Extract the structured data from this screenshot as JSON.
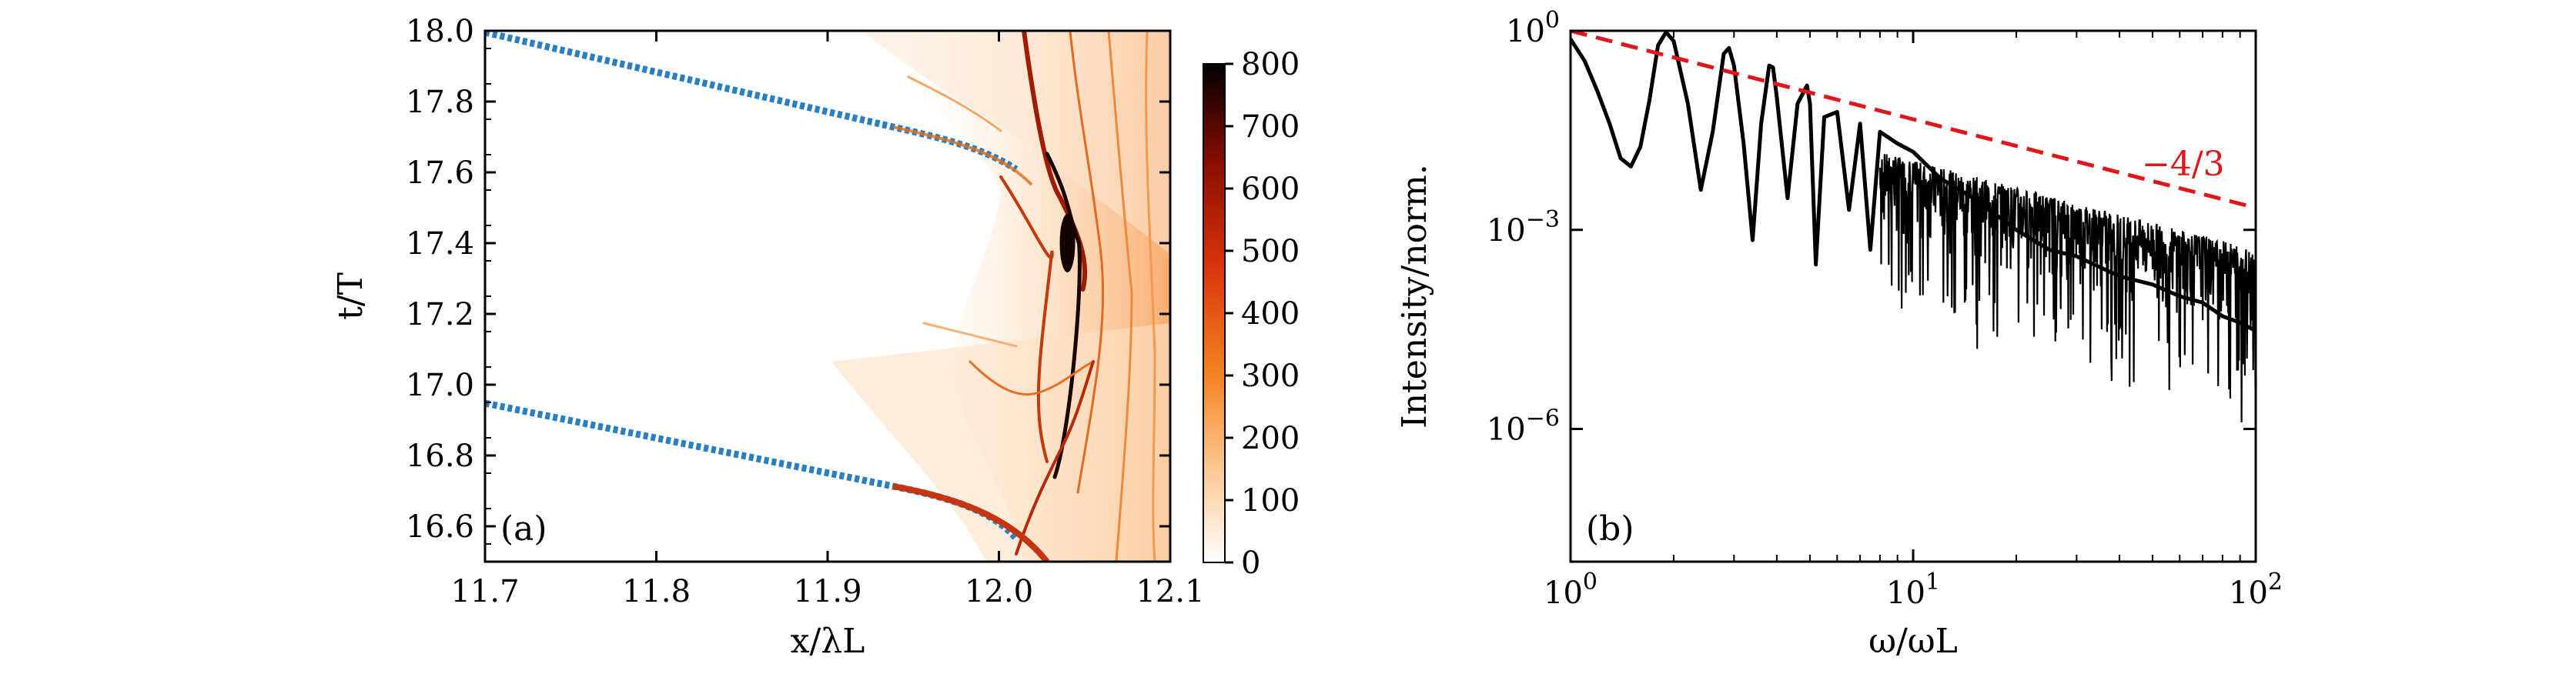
{
  "chart_data": [
    {
      "panel": "(a)",
      "type": "heatmap",
      "xlabel": "x/λL",
      "ylabel": "t/T",
      "xlim": [
        11.7,
        12.1
      ],
      "ylim": [
        16.5,
        18.0
      ],
      "xticks": [
        "11.7",
        "11.8",
        "11.9",
        "12.0",
        "12.1"
      ],
      "yticks": [
        "16.6",
        "16.8",
        "17.0",
        "17.2",
        "17.4",
        "17.6",
        "17.8",
        "18.0"
      ],
      "colorbar": {
        "ticks": [
          "0",
          "100",
          "200",
          "300",
          "400",
          "500",
          "600",
          "700",
          "800"
        ],
        "range": [
          0,
          800
        ],
        "colormap": "gist_heat_r (white → orange → red → black)"
      },
      "features": {
        "incident_pulses": [
          {
            "x": [
              11.7,
              11.93,
              12.02
            ],
            "t": [
              18.0,
              17.76,
              17.69
            ]
          },
          {
            "x": [
              11.7,
              11.93,
              12.02
            ],
            "t": [
              16.95,
              16.7,
              16.62
            ]
          }
        ],
        "surface_peak": {
          "x": 12.04,
          "t": 17.4
        }
      }
    },
    {
      "panel": "(b)",
      "type": "line",
      "xlabel": "ω/ωL",
      "ylabel": "Intensity/norm.",
      "xscale": "log",
      "yscale": "log",
      "xlim": [
        1,
        100
      ],
      "ylim": [
        1e-08,
        1
      ],
      "xticks": [
        "10^0",
        "10^1",
        "10^2"
      ],
      "yticks": [
        "10^-6",
        "10^-3",
        "10^0"
      ],
      "annotation": "−4/3",
      "series": [
        {
          "style": "solid-black",
          "x": [
            1.0,
            1.1,
            1.2,
            1.3,
            1.4,
            1.5,
            1.6,
            1.7,
            1.8,
            1.9,
            2.0,
            2.2,
            2.4,
            2.6,
            2.8,
            2.9,
            3.0,
            3.2,
            3.4,
            3.6,
            3.8,
            3.9,
            4.0,
            4.3,
            4.6,
            4.9,
            5.0,
            5.2,
            5.5,
            6.0,
            6.5,
            7.0,
            7.5,
            8.0,
            9.0,
            10.0,
            12.0,
            15.0,
            20.0,
            25.0,
            30.0,
            40.0,
            50.0,
            60.0,
            70.0,
            80.0,
            90.0,
            100.0
          ],
          "y": [
            0.75,
            0.35,
            0.12,
            0.04,
            0.012,
            0.009,
            0.018,
            0.09,
            0.6,
            0.95,
            0.7,
            0.08,
            0.004,
            0.03,
            0.45,
            0.55,
            0.3,
            0.02,
            0.0007,
            0.04,
            0.3,
            0.28,
            0.1,
            0.003,
            0.08,
            0.15,
            0.08,
            0.0003,
            0.05,
            0.06,
            0.002,
            0.04,
            0.0005,
            0.03,
            0.02,
            0.015,
            0.006,
            0.003,
            0.001,
            0.0005,
            0.0004,
            0.0002,
            0.00015,
            0.0001,
            8e-05,
            5e-05,
            4e-05,
            3e-05
          ]
        },
        {
          "style": "dashed-red",
          "slope": "-4/3",
          "x": [
            1,
            100
          ],
          "y": [
            1,
            0.00215
          ]
        }
      ]
    }
  ]
}
